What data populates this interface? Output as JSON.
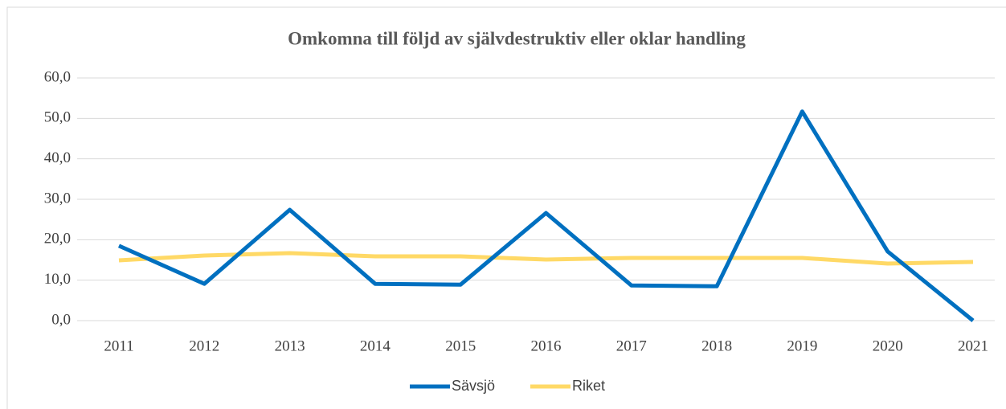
{
  "chart_data": {
    "type": "line",
    "title": "Omkomna till följd av självdestruktiv eller oklar handling",
    "categories": [
      "2011",
      "2012",
      "2013",
      "2014",
      "2015",
      "2016",
      "2017",
      "2018",
      "2019",
      "2020",
      "2021"
    ],
    "series": [
      {
        "name": "Sävsjö",
        "color": "#0070c0",
        "values": [
          18.5,
          9.1,
          27.4,
          9.1,
          8.9,
          26.6,
          8.7,
          8.5,
          51.7,
          17.1,
          0
        ]
      },
      {
        "name": "Riket",
        "color": "#ffd966",
        "values": [
          14.9,
          16.1,
          16.7,
          15.9,
          15.9,
          15.1,
          15.5,
          15.5,
          15.5,
          14.1,
          14.5
        ]
      }
    ],
    "ylim": [
      0,
      60
    ],
    "yticks": [
      {
        "value": 0,
        "label": "0,0"
      },
      {
        "value": 10,
        "label": "10,0"
      },
      {
        "value": 20,
        "label": "20,0"
      },
      {
        "value": 30,
        "label": "30,0"
      },
      {
        "value": 40,
        "label": "40,0"
      },
      {
        "value": 50,
        "label": "50,0"
      },
      {
        "value": 60,
        "label": "60,0"
      }
    ],
    "grid": true,
    "legend": "bottom"
  }
}
